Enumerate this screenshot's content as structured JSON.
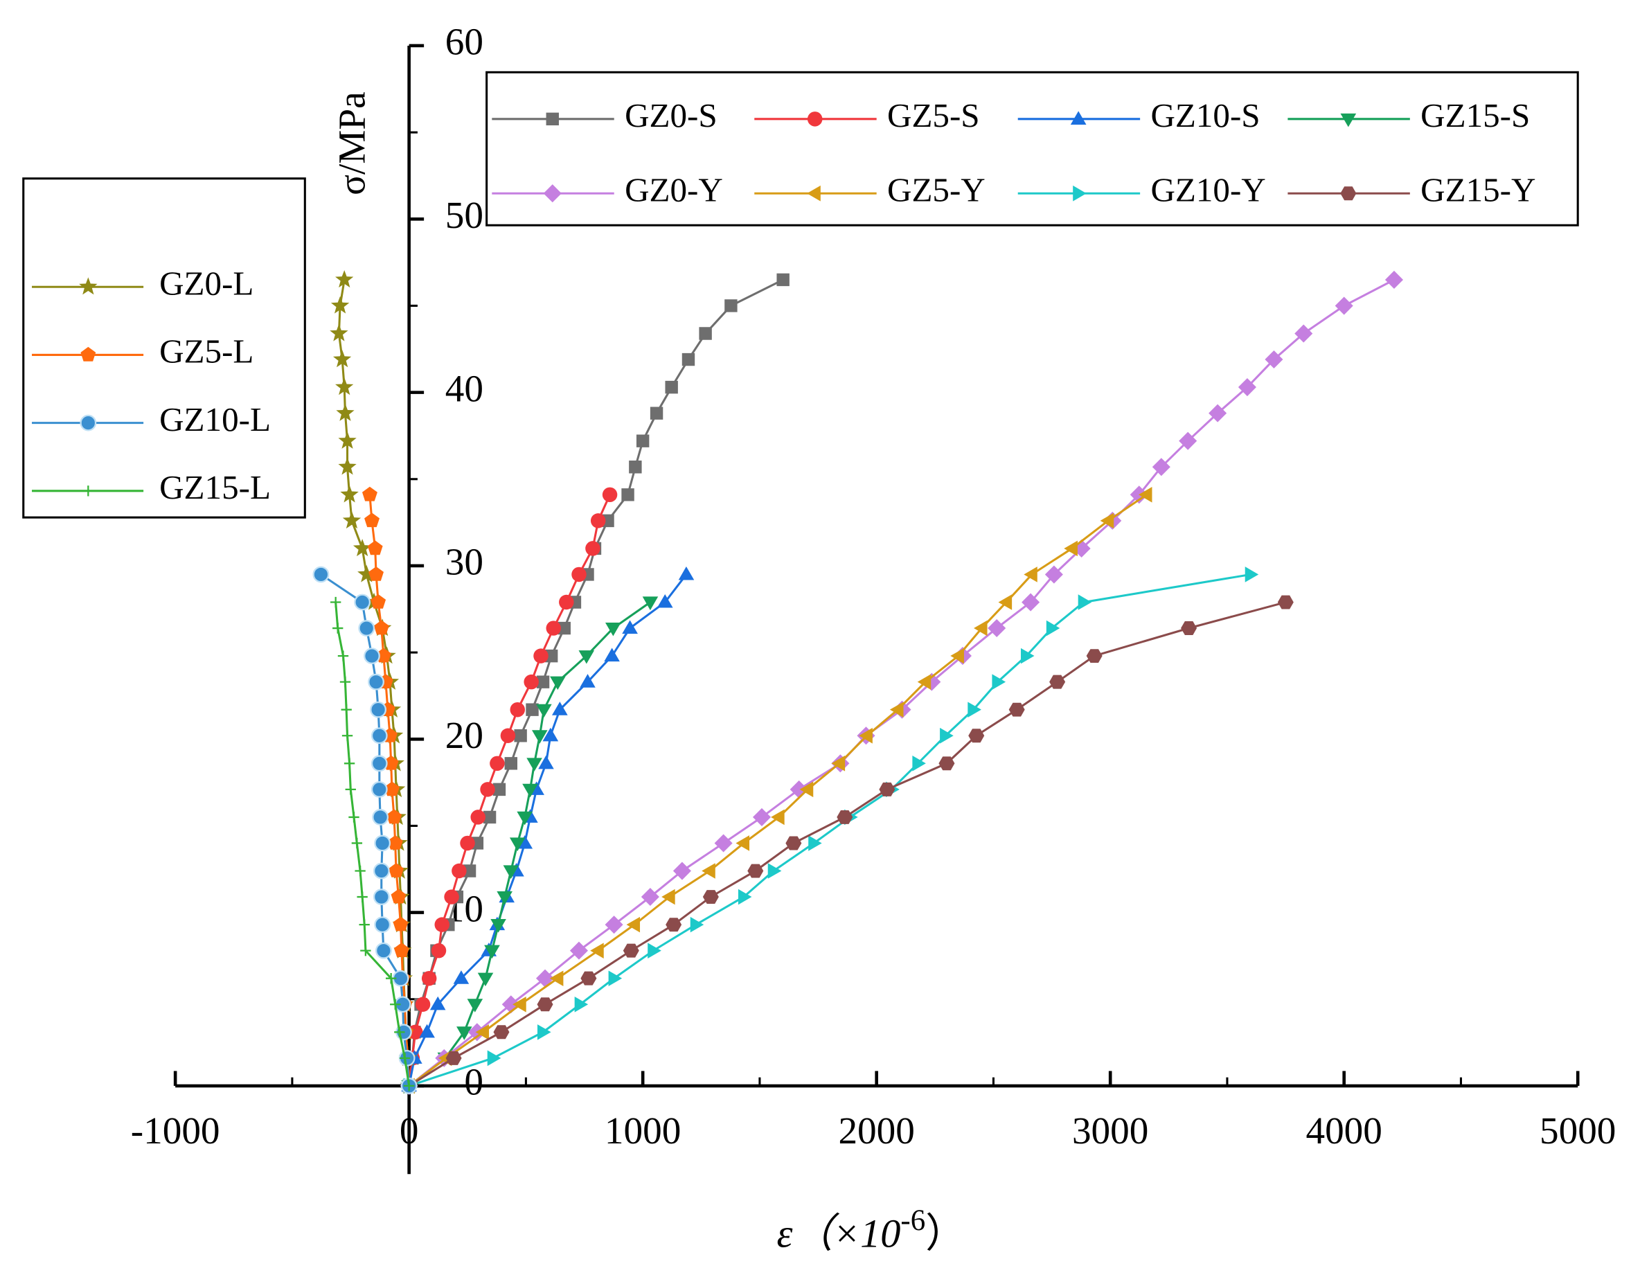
{
  "chart_data": {
    "type": "line",
    "y_label": "σ/MPa",
    "x_label": {
      "text": "ε（×10",
      "sup": "-6",
      "close": "）"
    },
    "xlim": [
      -1000,
      5000
    ],
    "xticks": [
      -1000,
      0,
      1000,
      2000,
      3000,
      4000,
      5000
    ],
    "xminorticks": [
      -500,
      500,
      1500,
      2500,
      3500,
      4500
    ],
    "ylim": [
      0,
      60
    ],
    "yticks": [
      0,
      10,
      20,
      30,
      40,
      50,
      60
    ],
    "yminorticks": [
      5,
      15,
      25,
      35,
      45,
      55
    ],
    "series": [
      {
        "name": "GZ0-S",
        "color": "#6e6e6e",
        "marker": "square",
        "legend_box": "top",
        "x": [
          0,
          14,
          23,
          50,
          86,
          118,
          168,
          205,
          259,
          291,
          345,
          386,
          436,
          477,
          527,
          573,
          609,
          664,
          709,
          764,
          795,
          850,
          936,
          968,
          1000,
          1059,
          1123,
          1195,
          1268,
          1377,
          1600
        ],
        "values": [
          0,
          1.6,
          3.1,
          4.7,
          6.2,
          7.8,
          9.3,
          10.9,
          12.4,
          14.0,
          15.5,
          17.1,
          18.6,
          20.2,
          21.7,
          23.3,
          24.8,
          26.4,
          27.9,
          29.5,
          31.0,
          32.6,
          34.1,
          35.7,
          37.2,
          38.8,
          40.3,
          41.9,
          43.4,
          45.0,
          46.5
        ]
      },
      {
        "name": "GZ5-S",
        "color": "#f0373c",
        "marker": "circle",
        "legend_box": "top",
        "x": [
          0,
          14,
          27,
          59,
          86,
          127,
          141,
          182,
          214,
          250,
          295,
          336,
          377,
          423,
          464,
          523,
          564,
          618,
          673,
          727,
          786,
          809,
          859
        ],
        "values": [
          0,
          1.6,
          3.1,
          4.7,
          6.2,
          7.8,
          9.3,
          10.9,
          12.4,
          14.0,
          15.5,
          17.1,
          18.6,
          20.2,
          21.7,
          23.3,
          24.8,
          26.4,
          27.9,
          29.5,
          31.0,
          32.6,
          34.1
        ]
      },
      {
        "name": "GZ10-S",
        "color": "#1a6fdf",
        "marker": "triangle-up",
        "legend_box": "top",
        "x": [
          0,
          23,
          77,
          123,
          223,
          341,
          377,
          418,
          459,
          495,
          518,
          545,
          586,
          605,
          645,
          764,
          868,
          945,
          1095,
          1186
        ],
        "values": [
          0,
          1.6,
          3.1,
          4.7,
          6.2,
          7.8,
          9.3,
          10.9,
          12.4,
          14.0,
          15.5,
          17.1,
          18.6,
          20.2,
          21.7,
          23.3,
          24.8,
          26.4,
          27.9,
          29.5
        ]
      },
      {
        "name": "GZ15-S",
        "color": "#16a05a",
        "marker": "triangle-down",
        "legend_box": "top",
        "x": [
          0,
          155,
          236,
          282,
          327,
          355,
          382,
          409,
          436,
          464,
          495,
          518,
          536,
          559,
          577,
          636,
          759,
          873,
          1032
        ],
        "values": [
          0,
          1.6,
          3.1,
          4.7,
          6.2,
          7.8,
          9.3,
          10.9,
          12.4,
          14.0,
          15.5,
          17.1,
          18.6,
          20.2,
          21.7,
          23.3,
          24.8,
          26.4,
          27.9
        ]
      },
      {
        "name": "GZ0-Y",
        "color": "#c57fe0",
        "marker": "diamond",
        "legend_box": "top",
        "x": [
          0,
          150,
          291,
          436,
          582,
          727,
          877,
          1032,
          1168,
          1345,
          1509,
          1668,
          1845,
          1955,
          2109,
          2236,
          2368,
          2514,
          2659,
          2759,
          2877,
          3009,
          3123,
          3218,
          3332,
          3459,
          3586,
          3700,
          3827,
          4000,
          4214
        ],
        "values": [
          0,
          1.6,
          3.1,
          4.7,
          6.2,
          7.8,
          9.3,
          10.9,
          12.4,
          14.0,
          15.5,
          17.1,
          18.6,
          20.2,
          21.7,
          23.3,
          24.8,
          26.4,
          27.9,
          29.5,
          31.0,
          32.6,
          34.1,
          35.7,
          37.2,
          38.8,
          40.3,
          41.9,
          43.4,
          45.0,
          46.5
        ]
      },
      {
        "name": "GZ5-Y",
        "color": "#d89c16",
        "marker": "triangle-left",
        "legend_box": "top",
        "x": [
          0,
          159,
          318,
          477,
          636,
          809,
          964,
          1114,
          1286,
          1432,
          1582,
          1705,
          1841,
          1959,
          2091,
          2209,
          2350,
          2450,
          2555,
          2664,
          2836,
          2991,
          3155
        ],
        "values": [
          0,
          1.6,
          3.1,
          4.7,
          6.2,
          7.8,
          9.3,
          10.9,
          12.4,
          14.0,
          15.5,
          17.1,
          18.6,
          20.2,
          21.7,
          23.3,
          24.8,
          26.4,
          27.9,
          29.5,
          31.0,
          32.6,
          34.1
        ]
      },
      {
        "name": "GZ10-Y",
        "color": "#1dc9c9",
        "marker": "triangle-right",
        "legend_box": "top",
        "x": [
          0,
          359,
          573,
          732,
          877,
          1045,
          1227,
          1432,
          1559,
          1732,
          1886,
          2064,
          2177,
          2295,
          2414,
          2518,
          2641,
          2750,
          2886,
          3600
        ],
        "values": [
          0,
          1.6,
          3.1,
          4.7,
          6.2,
          7.8,
          9.3,
          10.9,
          12.4,
          14.0,
          15.5,
          17.1,
          18.6,
          20.2,
          21.7,
          23.3,
          24.8,
          26.4,
          27.9,
          29.5
        ]
      },
      {
        "name": "GZ15-Y",
        "color": "#8b4b4b",
        "marker": "hexagon",
        "legend_box": "top",
        "x": [
          0,
          191,
          395,
          582,
          768,
          950,
          1132,
          1291,
          1482,
          1645,
          1864,
          2045,
          2300,
          2427,
          2600,
          2773,
          2932,
          3336,
          3750
        ],
        "values": [
          0,
          1.6,
          3.1,
          4.7,
          6.2,
          7.8,
          9.3,
          10.9,
          12.4,
          14.0,
          15.5,
          17.1,
          18.6,
          20.2,
          21.7,
          23.3,
          24.8,
          26.4,
          27.9
        ]
      },
      {
        "name": "GZ0-L",
        "color": "#8f8a16",
        "marker": "star",
        "legend_box": "left",
        "x": [
          0,
          -5,
          -14,
          -18,
          -23,
          -27,
          -32,
          -36,
          -41,
          -45,
          -50,
          -55,
          -59,
          -64,
          -73,
          -82,
          -95,
          -114,
          -150,
          -182,
          -200,
          -245,
          -255,
          -264,
          -264,
          -273,
          -277,
          -286,
          -300,
          -295,
          -277
        ],
        "values": [
          0,
          1.6,
          3.1,
          4.7,
          6.2,
          7.8,
          9.3,
          10.9,
          12.4,
          14.0,
          15.5,
          17.1,
          18.6,
          20.2,
          21.7,
          23.3,
          24.8,
          26.4,
          27.9,
          29.5,
          31.0,
          32.6,
          34.1,
          35.7,
          37.2,
          38.8,
          40.3,
          41.9,
          43.4,
          45.0,
          46.5
        ]
      },
      {
        "name": "GZ5-L",
        "color": "#ff6a0e",
        "marker": "pentagon",
        "legend_box": "left",
        "x": [
          0,
          -5,
          -14,
          -18,
          -27,
          -32,
          -36,
          -45,
          -55,
          -59,
          -64,
          -73,
          -77,
          -82,
          -91,
          -100,
          -109,
          -118,
          -132,
          -141,
          -145,
          -159,
          -168
        ],
        "values": [
          0,
          1.6,
          3.1,
          4.7,
          6.2,
          7.8,
          9.3,
          10.9,
          12.4,
          14.0,
          15.5,
          17.1,
          18.6,
          20.2,
          21.7,
          23.3,
          24.8,
          26.4,
          27.9,
          29.5,
          31.0,
          32.6,
          34.1
        ]
      },
      {
        "name": "GZ10-L",
        "color": "#3a8fd0",
        "marker": "sphere",
        "legend_box": "left",
        "x": [
          0,
          -9,
          -23,
          -27,
          -36,
          -109,
          -114,
          -118,
          -118,
          -114,
          -123,
          -127,
          -127,
          -127,
          -132,
          -141,
          -159,
          -182,
          -200,
          -377
        ],
        "values": [
          0,
          1.6,
          3.1,
          4.7,
          6.2,
          7.8,
          9.3,
          10.9,
          12.4,
          14.0,
          15.5,
          17.1,
          18.6,
          20.2,
          21.7,
          23.3,
          24.8,
          26.4,
          27.9,
          29.5
        ]
      },
      {
        "name": "GZ15-L",
        "color": "#36b536",
        "marker": "plus",
        "legend_box": "left",
        "x": [
          0,
          -18,
          -41,
          -59,
          -77,
          -186,
          -191,
          -200,
          -209,
          -223,
          -236,
          -250,
          -255,
          -264,
          -268,
          -273,
          -282,
          -305,
          -314
        ],
        "values": [
          0,
          1.6,
          3.1,
          4.7,
          6.2,
          7.8,
          9.3,
          10.9,
          12.4,
          14.0,
          15.5,
          17.1,
          18.6,
          20.2,
          21.7,
          23.3,
          24.8,
          26.4,
          27.9
        ]
      }
    ]
  }
}
